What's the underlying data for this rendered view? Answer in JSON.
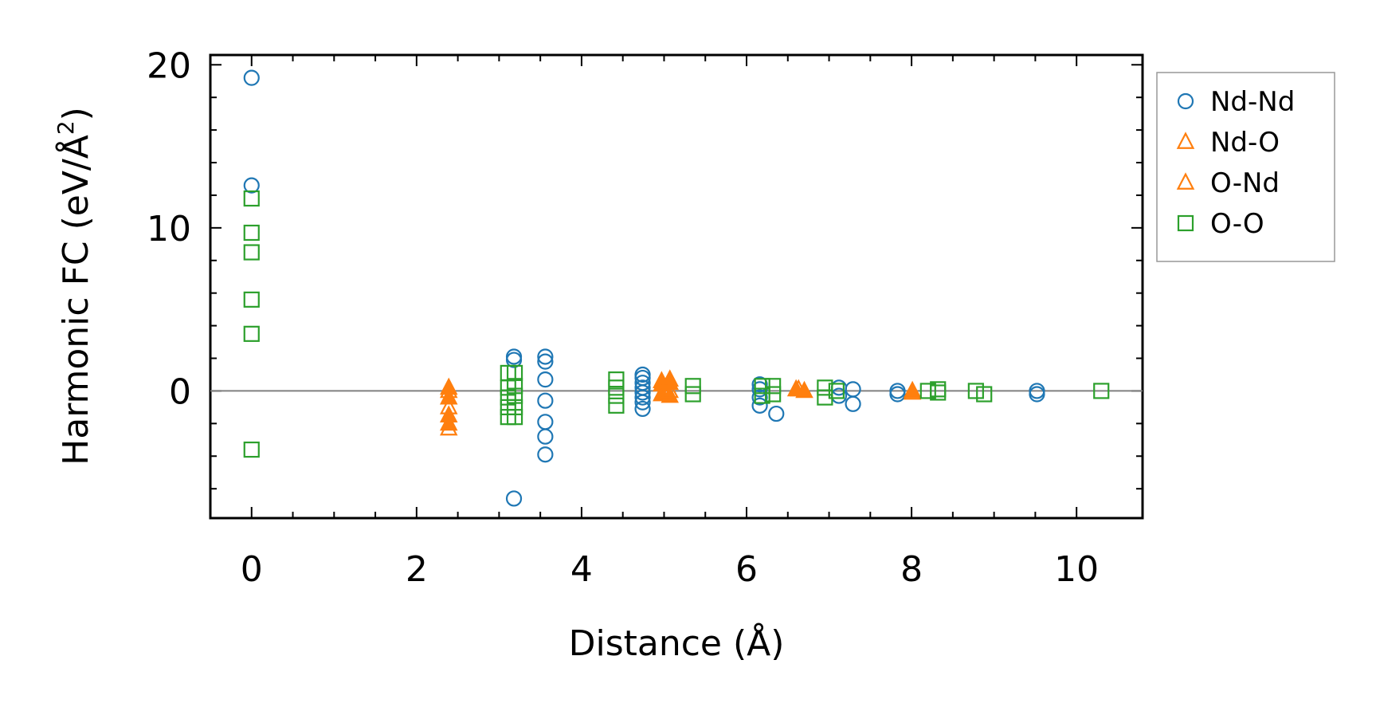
{
  "chart_data": {
    "type": "scatter",
    "title": "",
    "xlabel": "Distance (Å)",
    "ylabel_main": "Harmonic FC (eV/Å",
    "ylabel_sup": "2",
    "ylabel_end": ")",
    "xlim": [
      -0.5,
      10.8
    ],
    "ylim": [
      -7.8,
      20.6
    ],
    "xticks": [
      0,
      2,
      4,
      6,
      8,
      10
    ],
    "yticks": [
      0,
      10,
      20
    ],
    "xtick_labels": [
      "0",
      "2",
      "4",
      "6",
      "8",
      "10"
    ],
    "ytick_labels": [
      "0",
      "10",
      "20"
    ],
    "zero_line": true,
    "grid": false,
    "legend_position": "outside-right",
    "series": [
      {
        "name": "Nd-Nd",
        "marker": "circle",
        "filled": false,
        "color": "#1f77b4",
        "points": [
          [
            0,
            19.2
          ],
          [
            0,
            12.6
          ],
          [
            3.18,
            2.1
          ],
          [
            3.18,
            1.9
          ],
          [
            3.18,
            -6.6
          ],
          [
            3.56,
            2.1
          ],
          [
            3.56,
            1.8
          ],
          [
            3.56,
            0.7
          ],
          [
            3.56,
            -0.6
          ],
          [
            3.56,
            -1.9
          ],
          [
            3.56,
            -2.8
          ],
          [
            3.56,
            -3.9
          ],
          [
            4.74,
            1.0
          ],
          [
            4.74,
            0.8
          ],
          [
            4.74,
            0.5
          ],
          [
            4.74,
            0.2
          ],
          [
            4.74,
            -0.1
          ],
          [
            4.74,
            -0.4
          ],
          [
            4.74,
            -0.7
          ],
          [
            4.74,
            -1.1
          ],
          [
            6.16,
            0.4
          ],
          [
            6.16,
            0.1
          ],
          [
            6.16,
            -0.4
          ],
          [
            6.16,
            -0.9
          ],
          [
            6.36,
            -1.4
          ],
          [
            7.12,
            0.2
          ],
          [
            7.12,
            -0.3
          ],
          [
            7.29,
            0.1
          ],
          [
            7.29,
            -0.8
          ],
          [
            7.83,
            0.0
          ],
          [
            7.83,
            -0.2
          ],
          [
            9.52,
            0.0
          ],
          [
            9.52,
            -0.2
          ]
        ]
      },
      {
        "name": "Nd-O",
        "marker": "triangle",
        "filled": true,
        "color": "#ff7f0e",
        "points": [
          [
            2.39,
            0.2
          ],
          [
            2.39,
            -0.4
          ],
          [
            2.39,
            -1.5
          ],
          [
            2.39,
            -2.0
          ],
          [
            4.97,
            0.4
          ],
          [
            4.97,
            -0.2
          ],
          [
            5.07,
            0.5
          ],
          [
            5.07,
            -0.3
          ],
          [
            6.6,
            0.1
          ],
          [
            6.7,
            0.0
          ],
          [
            8.01,
            0.0
          ]
        ]
      },
      {
        "name": "O-Nd",
        "marker": "triangle",
        "filled": false,
        "color": "#ff7f0e",
        "points": [
          [
            2.39,
            0.0
          ],
          [
            2.39,
            -1.0
          ],
          [
            2.39,
            -2.3
          ],
          [
            4.97,
            0.6
          ],
          [
            5.07,
            0.7
          ],
          [
            5.07,
            0.0
          ],
          [
            6.63,
            0.1
          ],
          [
            8.01,
            -0.1
          ]
        ]
      },
      {
        "name": "O-O",
        "marker": "square",
        "filled": false,
        "color": "#2ca02c",
        "points": [
          [
            0,
            11.8
          ],
          [
            0,
            9.7
          ],
          [
            0,
            8.5
          ],
          [
            0,
            5.6
          ],
          [
            0,
            3.5
          ],
          [
            0,
            -3.6
          ],
          [
            3.11,
            1.1
          ],
          [
            3.11,
            0.2
          ],
          [
            3.11,
            -0.4
          ],
          [
            3.11,
            -1.0
          ],
          [
            3.11,
            -1.6
          ],
          [
            3.19,
            1.1
          ],
          [
            3.19,
            0.3
          ],
          [
            3.19,
            -0.3
          ],
          [
            3.19,
            -1.0
          ],
          [
            3.19,
            -1.6
          ],
          [
            4.42,
            0.7
          ],
          [
            4.42,
            0.2
          ],
          [
            4.42,
            -0.3
          ],
          [
            4.42,
            -0.9
          ],
          [
            5.35,
            0.3
          ],
          [
            5.35,
            -0.2
          ],
          [
            6.19,
            0.3
          ],
          [
            6.19,
            -0.3
          ],
          [
            6.32,
            0.3
          ],
          [
            6.32,
            -0.2
          ],
          [
            6.95,
            0.2
          ],
          [
            6.95,
            -0.4
          ],
          [
            7.09,
            0.0
          ],
          [
            8.2,
            0.0
          ],
          [
            8.32,
            0.1
          ],
          [
            8.32,
            -0.1
          ],
          [
            8.78,
            0.0
          ],
          [
            8.88,
            -0.2
          ],
          [
            10.3,
            0.0
          ]
        ]
      }
    ],
    "legend": [
      {
        "label": "Nd-Nd",
        "marker": "circle",
        "color": "#1f77b4"
      },
      {
        "label": "Nd-O",
        "marker": "triangle",
        "color": "#ff7f0e"
      },
      {
        "label": "O-Nd",
        "marker": "triangle",
        "color": "#ff7f0e"
      },
      {
        "label": "O-O",
        "marker": "square",
        "color": "#2ca02c"
      }
    ]
  }
}
